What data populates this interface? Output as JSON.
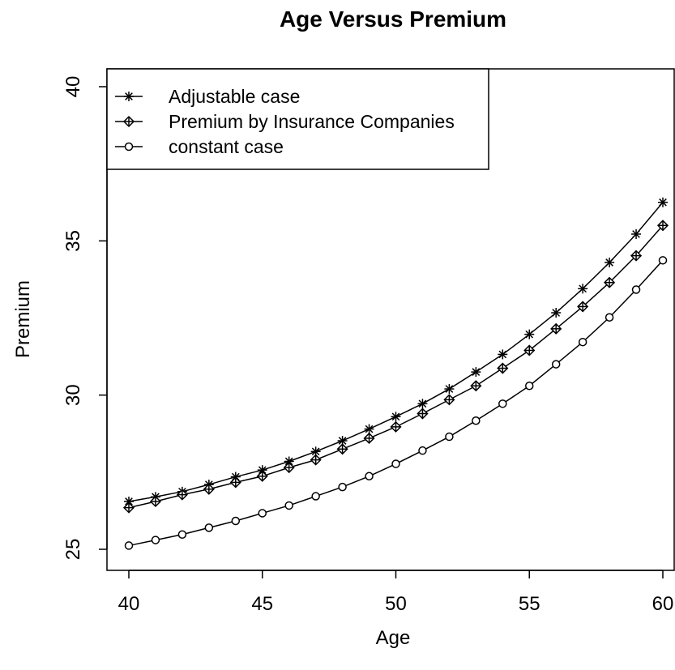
{
  "chart_data": {
    "type": "line",
    "title": "Age Versus Premium",
    "xlabel": "Age",
    "ylabel": "Premium",
    "xlim": [
      40,
      60
    ],
    "ylim": [
      25,
      40
    ],
    "xticks": [
      "40",
      "45",
      "50",
      "55",
      "60"
    ],
    "yticks": [
      "25",
      "30",
      "35",
      "40"
    ],
    "grid": false,
    "legend_position": "top-left",
    "x": [
      40,
      41,
      42,
      43,
      44,
      45,
      46,
      47,
      48,
      49,
      50,
      51,
      52,
      53,
      54,
      55,
      56,
      57,
      58,
      59,
      60
    ],
    "series": [
      {
        "name": "Adjustable case",
        "marker": "asterisk",
        "values": [
          26.55,
          26.7,
          26.87,
          27.1,
          27.35,
          27.57,
          27.85,
          28.17,
          28.52,
          28.9,
          29.3,
          29.72,
          30.2,
          30.75,
          31.32,
          31.97,
          32.67,
          33.45,
          34.3,
          35.22,
          36.25
        ]
      },
      {
        "name": "Premium by Insurance Companies",
        "marker": "diamond-plus",
        "values": [
          26.35,
          26.55,
          26.77,
          26.95,
          27.17,
          27.37,
          27.65,
          27.9,
          28.25,
          28.6,
          28.97,
          29.4,
          29.85,
          30.3,
          30.87,
          31.45,
          32.15,
          32.87,
          33.65,
          34.52,
          35.5
        ]
      },
      {
        "name": "constant case",
        "marker": "circle",
        "values": [
          25.12,
          25.3,
          25.48,
          25.7,
          25.92,
          26.17,
          26.42,
          26.72,
          27.02,
          27.37,
          27.77,
          28.2,
          28.65,
          29.17,
          29.72,
          30.3,
          31.0,
          31.72,
          32.52,
          33.42,
          34.37
        ]
      }
    ]
  },
  "colors": {
    "line": "#000000",
    "background": "#ffffff"
  }
}
